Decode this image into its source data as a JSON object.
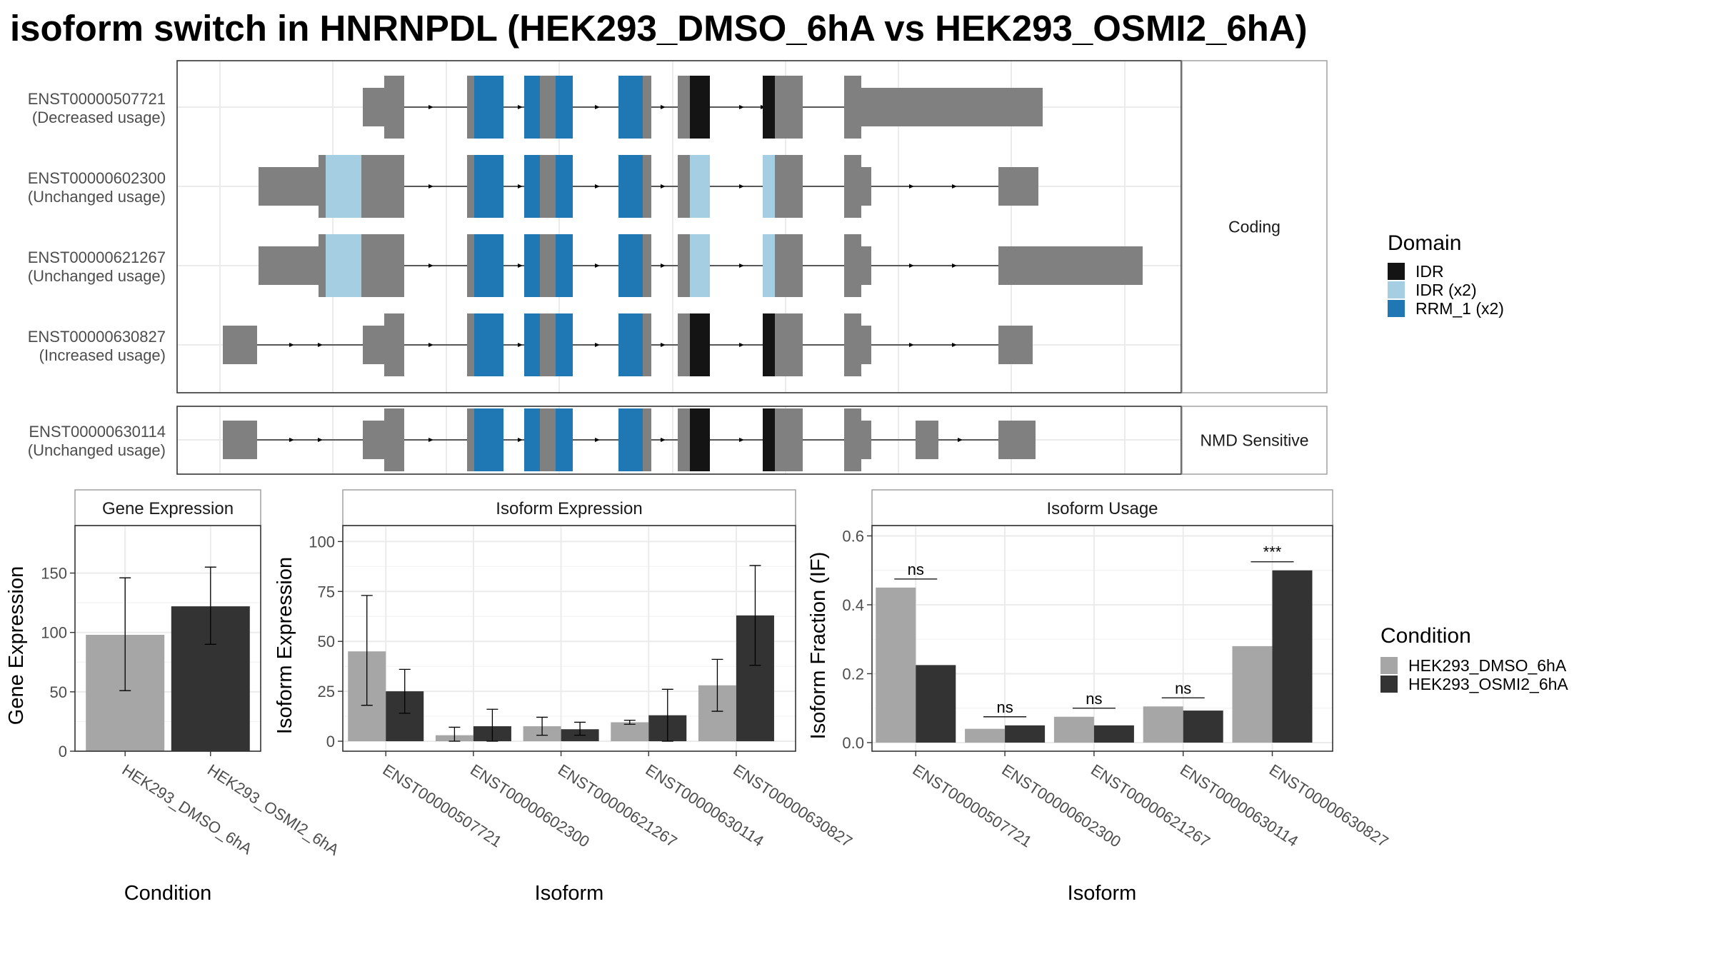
{
  "title": "isoform switch in HNRNPDL (HEK293_DMSO_6hA vs HEK293_OSMI2_6hA)",
  "colors": {
    "exon": "#808080",
    "idr": "#141414",
    "idr_x2": "#a6cee3",
    "rrm": "#1f78b4",
    "dmso": "#a6a6a6",
    "osmi": "#333333"
  },
  "structure": {
    "panels": [
      {
        "label": "Coding",
        "isoforms": [
          "ENST00000507721",
          "ENST00000602300",
          "ENST00000621267",
          "ENST00000630827"
        ]
      },
      {
        "label": "NMD Sensitive",
        "isoforms": [
          "ENST00000630114"
        ]
      }
    ],
    "isoform_labels": [
      {
        "id": "ENST00000507721",
        "usage": "(Decreased usage)"
      },
      {
        "id": "ENST00000602300",
        "usage": "(Unchanged usage)"
      },
      {
        "id": "ENST00000621267",
        "usage": "(Unchanged usage)"
      },
      {
        "id": "ENST00000630827",
        "usage": "(Increased usage)"
      },
      {
        "id": "ENST00000630114",
        "usage": "(Unchanged usage)"
      }
    ]
  },
  "domain_legend": {
    "title": "Domain",
    "entries": [
      {
        "label": "IDR",
        "color_key": "idr"
      },
      {
        "label": "IDR (x2)",
        "color_key": "idr_x2"
      },
      {
        "label": "RRM_1 (x2)",
        "color_key": "rrm"
      }
    ]
  },
  "condition_legend": {
    "title": "Condition",
    "entries": [
      {
        "label": "HEK293_DMSO_6hA",
        "color_key": "dmso"
      },
      {
        "label": "HEK293_OSMI2_6hA",
        "color_key": "osmi"
      }
    ]
  },
  "chart_data": [
    {
      "type": "bar",
      "title": "Gene Expression",
      "xlabel": "Condition",
      "ylabel": "Gene Expression",
      "ylim": [
        0,
        190
      ],
      "yticks": [
        0,
        50,
        100,
        150
      ],
      "categories": [
        "HEK293_DMSO_6hA",
        "HEK293_OSMI2_6hA"
      ],
      "series": [
        {
          "name": "HEK293_DMSO_6hA",
          "values": [
            98,
            null
          ],
          "err_low": [
            51,
            null
          ],
          "err_high": [
            146,
            null
          ]
        },
        {
          "name": "HEK293_OSMI2_6hA",
          "values": [
            null,
            122
          ],
          "err_low": [
            null,
            90
          ],
          "err_high": [
            null,
            155
          ]
        }
      ]
    },
    {
      "type": "bar",
      "title": "Isoform Expression",
      "xlabel": "Isoform",
      "ylabel": "Isoform Expression",
      "ylim": [
        -5,
        108
      ],
      "yticks": [
        0,
        25,
        50,
        75,
        100
      ],
      "categories": [
        "ENST00000507721",
        "ENST00000602300",
        "ENST00000621267",
        "ENST00000630114",
        "ENST00000630827"
      ],
      "series": [
        {
          "name": "HEK293_DMSO_6hA",
          "values": [
            45,
            3,
            7.5,
            9.5,
            28
          ],
          "err_low": [
            18,
            0,
            3,
            8.5,
            15
          ],
          "err_high": [
            73,
            7,
            12,
            10.5,
            41
          ]
        },
        {
          "name": "HEK293_OSMI2_6hA",
          "values": [
            25,
            7.5,
            6,
            13,
            63
          ],
          "err_low": [
            14,
            0,
            3,
            0,
            38
          ],
          "err_high": [
            36,
            16,
            9.5,
            26,
            88
          ]
        }
      ]
    },
    {
      "type": "bar",
      "title": "Isoform Usage",
      "xlabel": "Isoform",
      "ylabel": "Isoform Fraction (IF)",
      "ylim": [
        -0.025,
        0.63
      ],
      "yticks": [
        0.0,
        0.2,
        0.4,
        0.6
      ],
      "categories": [
        "ENST00000507721",
        "ENST00000602300",
        "ENST00000621267",
        "ENST00000630114",
        "ENST00000630827"
      ],
      "series": [
        {
          "name": "HEK293_DMSO_6hA",
          "values": [
            0.45,
            0.04,
            0.075,
            0.105,
            0.28
          ]
        },
        {
          "name": "HEK293_OSMI2_6hA",
          "values": [
            0.225,
            0.05,
            0.05,
            0.093,
            0.5
          ]
        }
      ],
      "significance": [
        "ns",
        "ns",
        "ns",
        "ns",
        "***"
      ]
    }
  ]
}
